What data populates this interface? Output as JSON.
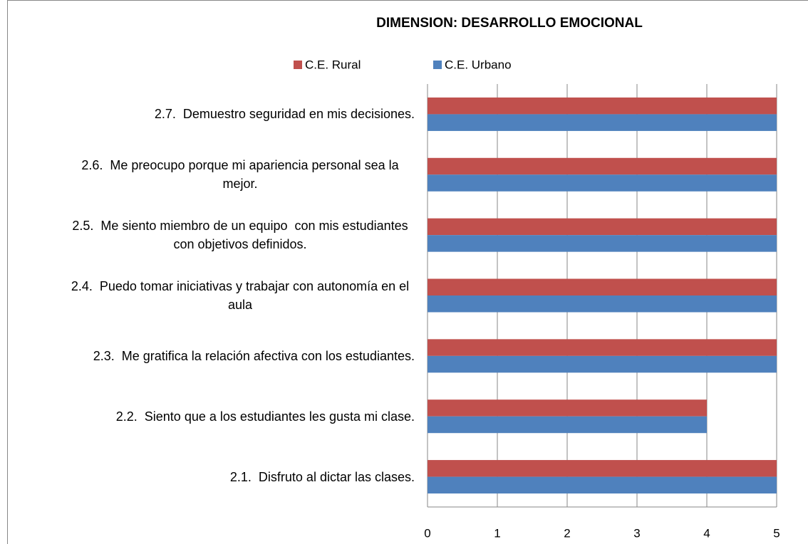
{
  "chart_data": {
    "type": "hbar",
    "title": "DIMENSION: DESARROLLO EMOCIONAL",
    "categories": [
      "2.1.  Disfruto al dictar las clases.",
      "2.2.  Siento que a los estudiantes les gusta mi clase.",
      "2.3.  Me gratifica la relación afectiva con los estudiantes.",
      "2.4.  Puedo tomar iniciativas y trabajar con autonomía en el aula",
      "2.5.  Me siento miembro de un equipo  con mis estudiantes con objetivos definidos.",
      "2.6.  Me preocupo porque mi apariencia personal sea la mejor.",
      "2.7.  Demuestro seguridad en mis decisiones."
    ],
    "series": [
      {
        "name": "C.E. Rural",
        "color": "#c0504d",
        "values": [
          5,
          4,
          5,
          5,
          5,
          5,
          5
        ]
      },
      {
        "name": "C.E. Urbano",
        "color": "#4f81bd",
        "values": [
          5,
          4,
          5,
          5,
          5,
          5,
          5
        ]
      }
    ],
    "xlim": [
      0,
      5
    ],
    "xticks": [
      0,
      1,
      2,
      3,
      4,
      5
    ],
    "grid": true,
    "legend": "top"
  }
}
